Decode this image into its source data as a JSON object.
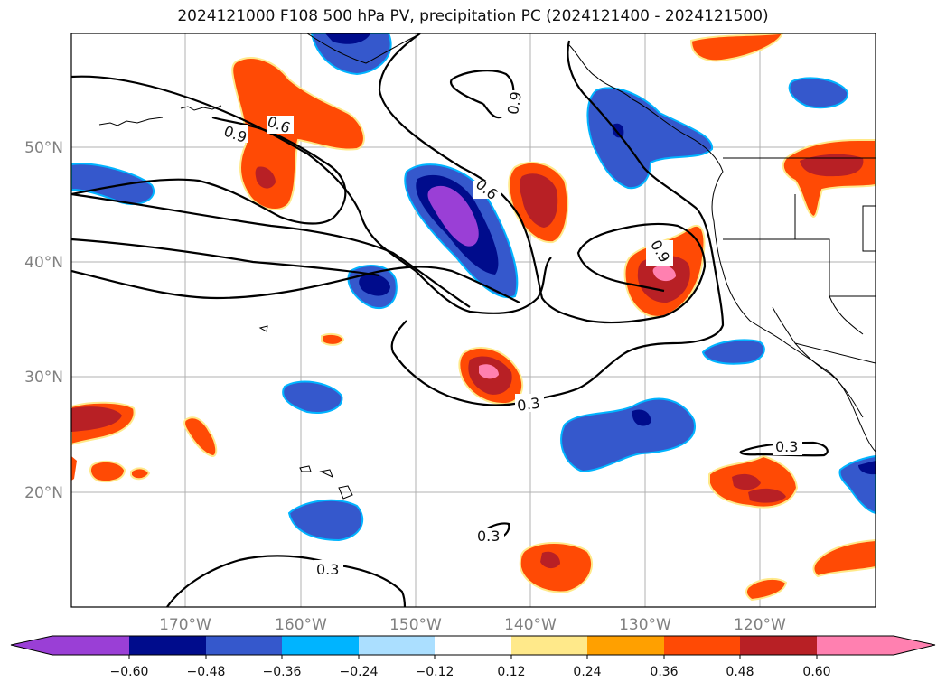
{
  "title": "2024121000 F108 500 hPa PV, precipitation PC (2024121400 - 2024121500)",
  "lat_ticks": [
    "50°N",
    "40°N",
    "30°N",
    "20°N"
  ],
  "lon_ticks": [
    "170°W",
    "160°W",
    "150°W",
    "140°W",
    "130°W",
    "120°W"
  ],
  "colorbar": {
    "ticks": [
      "−0.60",
      "−0.48",
      "−0.36",
      "−0.24",
      "−0.12",
      "0.12",
      "0.24",
      "0.36",
      "0.48",
      "0.60"
    ],
    "colors": [
      "#9a3fd6",
      "#000c8c",
      "#3558cc",
      "#00b4ff",
      "#abdfff",
      "#ffffff",
      "#ffe98a",
      "#ffa000",
      "#ff4a05",
      "#b82025",
      "#ff80b0"
    ]
  },
  "contour_labels": [
    "0.9",
    "0.6",
    "0.6",
    "0.9",
    "0.9",
    "0.3",
    "0.3",
    "0.3",
    "0.3"
  ]
}
